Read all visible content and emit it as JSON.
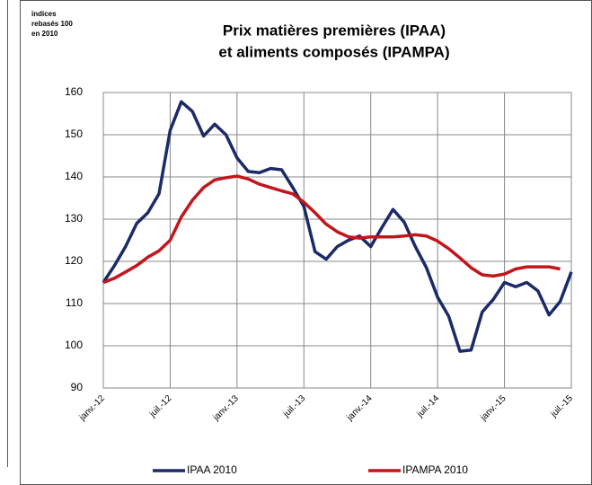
{
  "chart_data": {
    "type": "line",
    "title": [
      "Prix matières premières (IPAA)",
      "et aliments composés (IPAMPA)"
    ],
    "annotation": [
      "indices",
      "rebasés 100",
      "en 2010"
    ],
    "categories": [
      "janv.-12",
      null,
      null,
      null,
      null,
      null,
      "juil.-12",
      null,
      null,
      null,
      null,
      null,
      "janv.-13",
      null,
      null,
      null,
      null,
      null,
      "juil.-13",
      null,
      null,
      null,
      null,
      null,
      "janv.-14",
      null,
      null,
      null,
      null,
      null,
      "juil.-14",
      null,
      null,
      null,
      null,
      null,
      "janv.-15",
      null,
      null,
      null,
      null,
      null,
      "juil.-15"
    ],
    "series": [
      {
        "name": "IPAA 2010",
        "color": "#1b2a68",
        "values": [
          115,
          119,
          123.5,
          129,
          131.5,
          136,
          151,
          157.8,
          155.5,
          149.7,
          152.5,
          150,
          144.5,
          141.3,
          141,
          142,
          141.7,
          137.5,
          133,
          122.3,
          120.5,
          123.5,
          125,
          126,
          123.5,
          128,
          132.3,
          129.3,
          123.5,
          118.5,
          111.5,
          107,
          98.7,
          99,
          108,
          111,
          115,
          114,
          115,
          113,
          107.3,
          110.5,
          117.5
        ]
      },
      {
        "name": "IPAMPA 2010",
        "color": "#c3161c",
        "values": [
          115,
          116,
          117.5,
          119,
          121,
          122.5,
          125,
          130.5,
          134.5,
          137.5,
          139.3,
          139.8,
          140.2,
          139.5,
          138.3,
          137.5,
          136.7,
          136,
          134,
          131.5,
          128.8,
          127,
          125.8,
          125.5,
          125.8,
          125.8,
          125.8,
          126,
          126.3,
          126,
          124.8,
          123,
          120.8,
          118.5,
          116.8,
          116.5,
          117,
          118.2,
          118.7,
          118.7,
          118.7,
          118.2,
          null
        ]
      }
    ],
    "ylim": [
      90,
      160
    ],
    "yticks": [
      90,
      100,
      110,
      120,
      130,
      140,
      150,
      160
    ],
    "grid": true,
    "legend": "bottom"
  }
}
